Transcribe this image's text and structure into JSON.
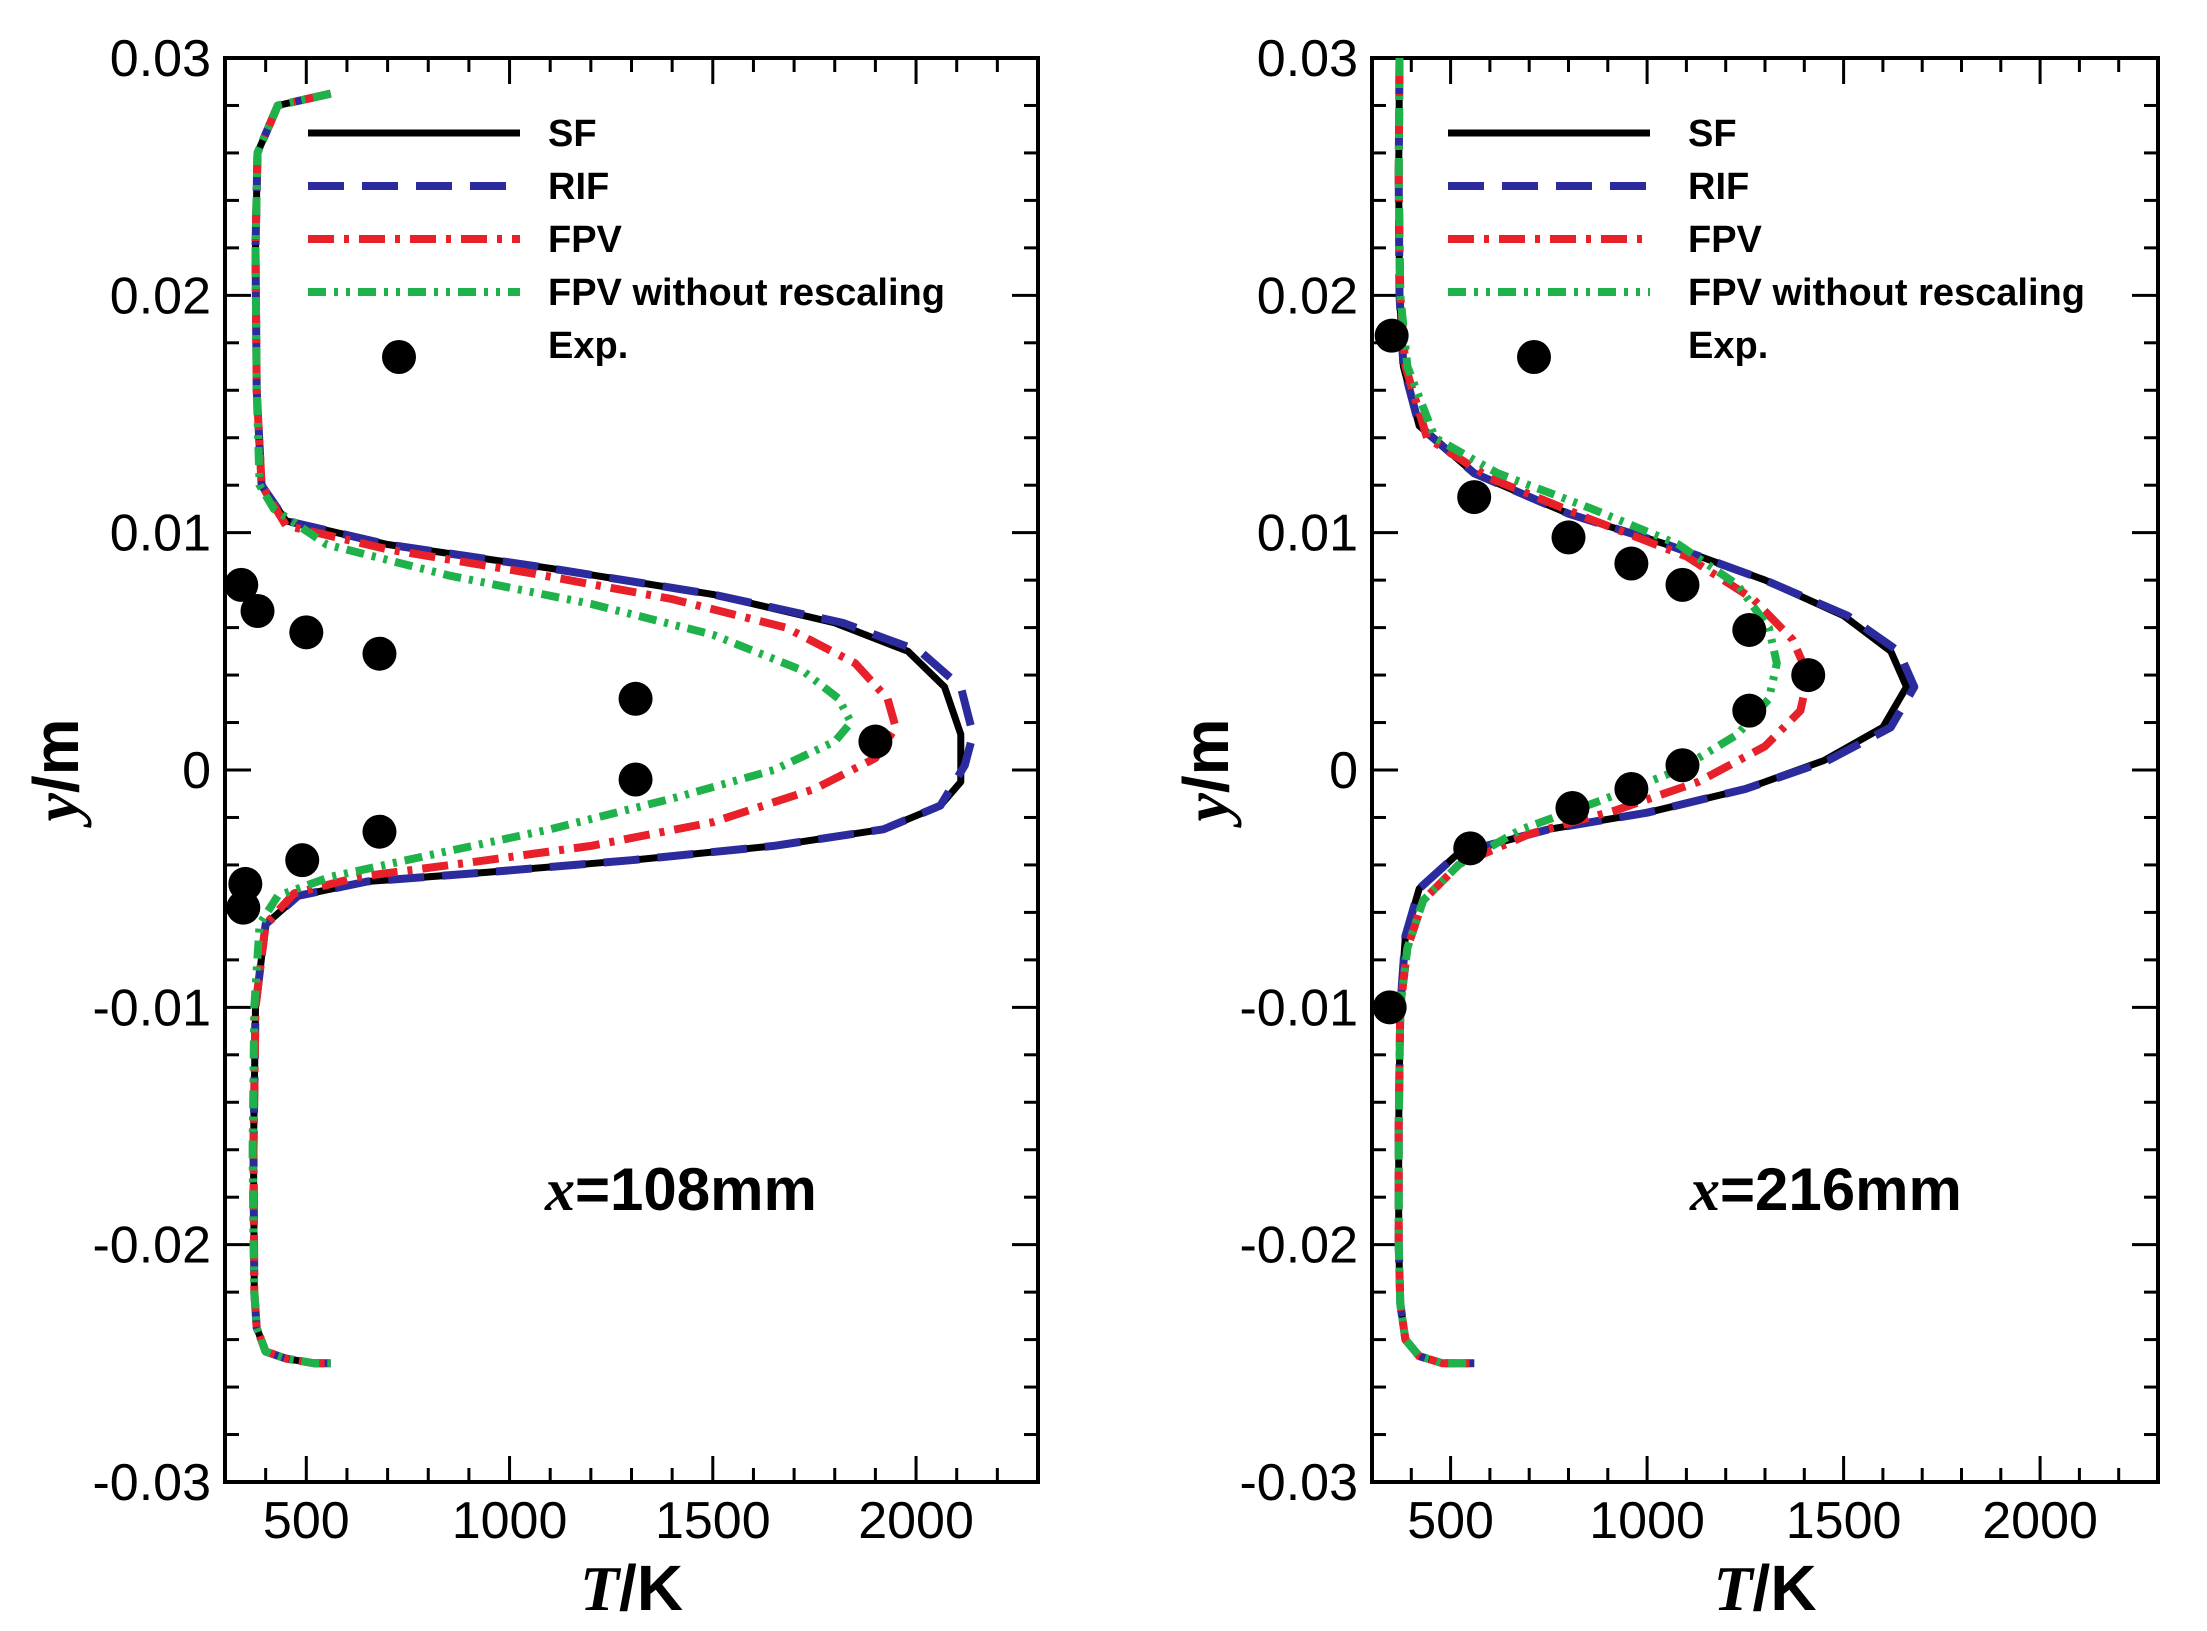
{
  "figure": {
    "colors": {
      "SF": "#000000",
      "RIF": "#2b2b9e",
      "FPV": "#e8202a",
      "FPV without rescaling": "#1fb24a",
      "Exp.": "#000000"
    }
  },
  "chart_data": [
    {
      "type": "line",
      "annotation": {
        "var": "x",
        "text": "=108mm"
      },
      "xlabel": {
        "var": "T",
        "unit": "/K"
      },
      "ylabel": {
        "var": "y",
        "unit": "/m"
      },
      "xlim": [
        300,
        2300
      ],
      "ylim": [
        -0.03,
        0.03
      ],
      "xticks": [
        500,
        1000,
        1500,
        2000
      ],
      "xtick_labels": [
        "500",
        "1000",
        "1500",
        "2000"
      ],
      "yticks": [
        -0.03,
        -0.02,
        -0.01,
        0,
        0.01,
        0.02,
        0.03
      ],
      "ytick_labels": [
        "-0.03",
        "-0.02",
        "-0.01",
        "0",
        "0.01",
        "0.02",
        "0.03"
      ],
      "legend": {
        "position": "top-right",
        "entries": [
          "SF",
          "RIF",
          "FPV",
          "FPV without rescaling",
          "Exp."
        ]
      },
      "series": [
        {
          "name": "SF",
          "style": "solid",
          "x": [
            560,
            430,
            380,
            375,
            378,
            390,
            450,
            700,
            1100,
            1500,
            1800,
            1980,
            2070,
            2110,
            2110,
            2060,
            1920,
            1650,
            1300,
            950,
            650,
            480,
            400,
            375,
            370,
            372,
            378,
            400,
            450,
            520,
            560
          ],
          "y": [
            0.0285,
            0.028,
            0.026,
            0.022,
            0.016,
            0.012,
            0.0105,
            0.0095,
            0.0085,
            0.0074,
            0.0062,
            0.005,
            0.0035,
            0.0015,
            -0.0005,
            -0.0015,
            -0.0025,
            -0.0032,
            -0.0038,
            -0.0043,
            -0.0047,
            -0.0053,
            -0.0065,
            -0.01,
            -0.016,
            -0.022,
            -0.0235,
            -0.0245,
            -0.0248,
            -0.025,
            -0.025
          ]
        },
        {
          "name": "RIF",
          "style": "dashed",
          "x": [
            560,
            430,
            380,
            375,
            378,
            390,
            450,
            700,
            1100,
            1500,
            1820,
            2010,
            2110,
            2140,
            2120,
            2060,
            1920,
            1650,
            1300,
            950,
            650,
            480,
            400,
            375,
            370,
            372,
            378,
            400,
            450,
            520,
            560
          ],
          "y": [
            0.0285,
            0.028,
            0.026,
            0.022,
            0.016,
            0.012,
            0.0105,
            0.0095,
            0.0085,
            0.0074,
            0.0062,
            0.005,
            0.0035,
            0.0015,
            0.0002,
            -0.0015,
            -0.0025,
            -0.0032,
            -0.0038,
            -0.0043,
            -0.0047,
            -0.0053,
            -0.0065,
            -0.01,
            -0.016,
            -0.022,
            -0.0235,
            -0.0245,
            -0.0248,
            -0.025,
            -0.025
          ]
        },
        {
          "name": "FPV",
          "style": "dashdot",
          "x": [
            560,
            430,
            380,
            375,
            378,
            390,
            450,
            700,
            1050,
            1400,
            1680,
            1850,
            1930,
            1950,
            1900,
            1750,
            1500,
            1200,
            900,
            630,
            470,
            400,
            375,
            370,
            372,
            378,
            400,
            450,
            520,
            560
          ],
          "y": [
            0.0285,
            0.028,
            0.026,
            0.022,
            0.016,
            0.012,
            0.0103,
            0.0093,
            0.0083,
            0.0072,
            0.006,
            0.0045,
            0.003,
            0.0018,
            0.0005,
            -0.0008,
            -0.0022,
            -0.0032,
            -0.0039,
            -0.0045,
            -0.0052,
            -0.0065,
            -0.01,
            -0.016,
            -0.022,
            -0.0235,
            -0.0245,
            -0.0248,
            -0.025,
            -0.025
          ]
        },
        {
          "name": "FPV without rescaling",
          "style": "dashdotdot",
          "x": [
            560,
            430,
            380,
            375,
            378,
            385,
            420,
            550,
            850,
            1200,
            1500,
            1720,
            1810,
            1840,
            1800,
            1650,
            1400,
            1100,
            800,
            560,
            430,
            385,
            372,
            368,
            370,
            372,
            378,
            400,
            450,
            520,
            560
          ],
          "y": [
            0.0285,
            0.028,
            0.026,
            0.022,
            0.016,
            0.012,
            0.011,
            0.0095,
            0.0082,
            0.007,
            0.0057,
            0.0042,
            0.003,
            0.002,
            0.0012,
            0.0,
            -0.0012,
            -0.0025,
            -0.0036,
            -0.0045,
            -0.0053,
            -0.0065,
            -0.01,
            -0.016,
            -0.02,
            -0.022,
            -0.0235,
            -0.0245,
            -0.0248,
            -0.025,
            -0.025
          ]
        },
        {
          "name": "Exp.",
          "style": "markers",
          "x": [
            340,
            380,
            500,
            680,
            1310,
            1310,
            1900,
            680,
            490,
            350,
            345
          ],
          "y": [
            0.0078,
            0.0067,
            0.0058,
            0.0049,
            0.003,
            -0.0004,
            0.0012,
            -0.0026,
            -0.0038,
            -0.0048,
            -0.0058
          ]
        }
      ]
    },
    {
      "type": "line",
      "annotation": {
        "var": "x",
        "text": "=216mm"
      },
      "xlabel": {
        "var": "T",
        "unit": "/K"
      },
      "ylabel": {
        "var": "y",
        "unit": "/m"
      },
      "xlim": [
        300,
        2300
      ],
      "ylim": [
        -0.03,
        0.03
      ],
      "xticks": [
        500,
        1000,
        1500,
        2000
      ],
      "xtick_labels": [
        "500",
        "1000",
        "1500",
        "2000"
      ],
      "yticks": [
        -0.03,
        -0.02,
        -0.01,
        0,
        0.01,
        0.02,
        0.03
      ],
      "ytick_labels": [
        "-0.03",
        "-0.02",
        "-0.01",
        "0",
        "0.01",
        "0.02",
        "0.03"
      ],
      "legend": {
        "position": "top-right",
        "entries": [
          "SF",
          "RIF",
          "FPV",
          "FPV without rescaling",
          "Exp."
        ]
      },
      "series": [
        {
          "name": "SF",
          "style": "solid",
          "x": [
            370,
            368,
            370,
            380,
            420,
            560,
            800,
            1050,
            1300,
            1500,
            1620,
            1660,
            1600,
            1450,
            1250,
            1000,
            750,
            520,
            420,
            385,
            372,
            368,
            368,
            372,
            385,
            420,
            480,
            540,
            560
          ],
          "y": [
            0.03,
            0.025,
            0.02,
            0.017,
            0.0145,
            0.0125,
            0.0108,
            0.0095,
            0.008,
            0.0065,
            0.005,
            0.0035,
            0.0018,
            0.0004,
            -0.0008,
            -0.0018,
            -0.0025,
            -0.0035,
            -0.005,
            -0.007,
            -0.01,
            -0.015,
            -0.02,
            -0.0225,
            -0.024,
            -0.0247,
            -0.025,
            -0.025,
            -0.025
          ]
        },
        {
          "name": "RIF",
          "style": "dashed",
          "x": [
            370,
            368,
            370,
            380,
            420,
            560,
            800,
            1050,
            1300,
            1510,
            1640,
            1680,
            1620,
            1460,
            1250,
            1000,
            750,
            520,
            420,
            385,
            372,
            368,
            368,
            372,
            385,
            420,
            480,
            540,
            560
          ],
          "y": [
            0.03,
            0.025,
            0.02,
            0.017,
            0.0145,
            0.0125,
            0.0108,
            0.0095,
            0.008,
            0.0065,
            0.005,
            0.0035,
            0.0018,
            0.0004,
            -0.0008,
            -0.0018,
            -0.0025,
            -0.0035,
            -0.005,
            -0.007,
            -0.01,
            -0.015,
            -0.02,
            -0.0225,
            -0.024,
            -0.0247,
            -0.025,
            -0.025,
            -0.025
          ]
        },
        {
          "name": "FPV",
          "style": "dashdot",
          "x": [
            370,
            368,
            372,
            385,
            440,
            600,
            850,
            1100,
            1270,
            1370,
            1410,
            1390,
            1300,
            1130,
            920,
            700,
            520,
            430,
            390,
            372,
            368,
            368,
            372,
            385,
            420,
            480,
            540,
            560
          ],
          "y": [
            0.03,
            0.025,
            0.02,
            0.017,
            0.014,
            0.0123,
            0.0106,
            0.009,
            0.0072,
            0.0055,
            0.004,
            0.0025,
            0.001,
            -0.0005,
            -0.0017,
            -0.0027,
            -0.004,
            -0.0055,
            -0.0075,
            -0.01,
            -0.015,
            -0.02,
            -0.0225,
            -0.024,
            -0.0247,
            -0.025,
            -0.025,
            -0.025
          ]
        },
        {
          "name": "FPV without rescaling",
          "style": "dashdotdot",
          "x": [
            370,
            368,
            372,
            390,
            460,
            620,
            860,
            1080,
            1230,
            1310,
            1330,
            1310,
            1230,
            1080,
            880,
            680,
            520,
            430,
            390,
            372,
            368,
            368,
            372,
            385,
            420,
            480,
            540,
            560
          ],
          "y": [
            0.03,
            0.025,
            0.02,
            0.017,
            0.014,
            0.0125,
            0.011,
            0.0095,
            0.0078,
            0.006,
            0.0045,
            0.003,
            0.0015,
            0.0,
            -0.0013,
            -0.0025,
            -0.004,
            -0.0055,
            -0.0075,
            -0.01,
            -0.015,
            -0.02,
            -0.0225,
            -0.024,
            -0.0247,
            -0.025,
            -0.025,
            -0.025
          ]
        },
        {
          "name": "Exp.",
          "style": "markers",
          "x": [
            350,
            560,
            800,
            960,
            1090,
            1260,
            1410,
            1260,
            1090,
            960,
            810,
            550,
            345
          ],
          "y": [
            0.0183,
            0.0115,
            0.0098,
            0.0087,
            0.0078,
            0.0059,
            0.004,
            0.0025,
            0.0002,
            -0.0008,
            -0.0016,
            -0.0033,
            -0.01
          ]
        }
      ]
    }
  ]
}
